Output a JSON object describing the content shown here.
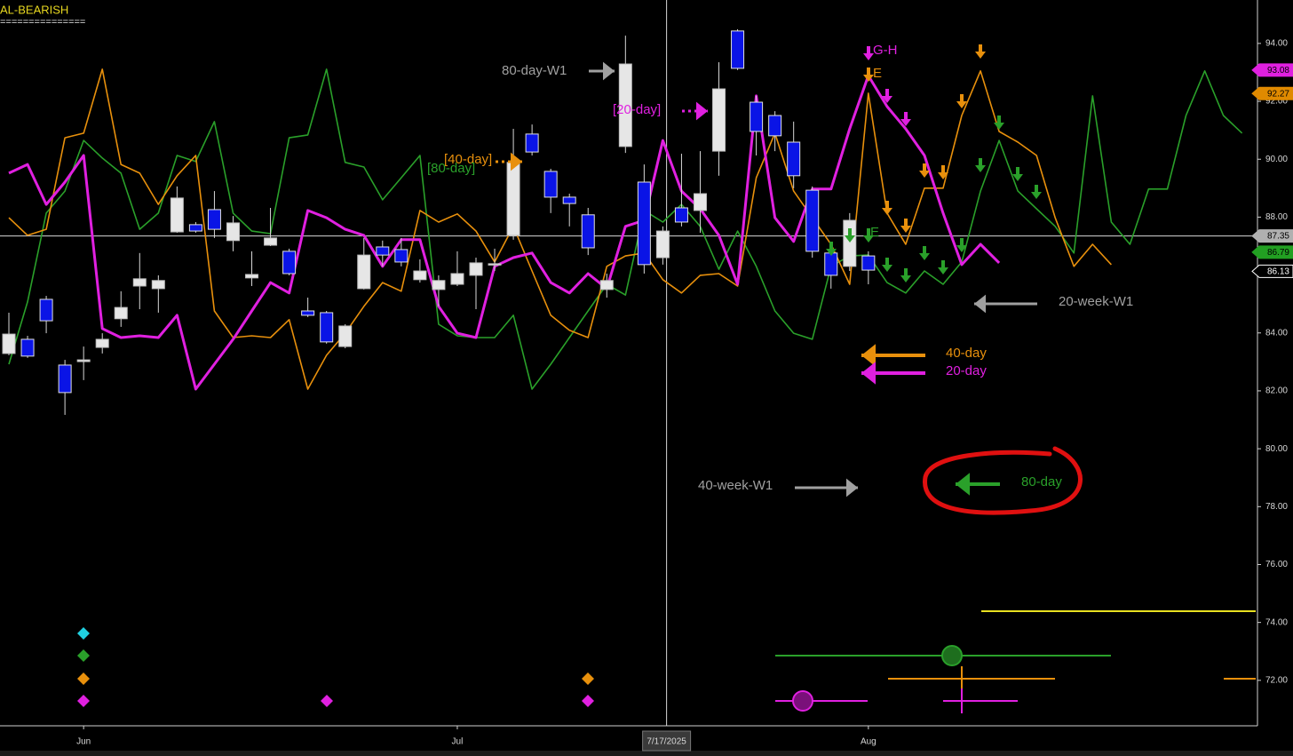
{
  "chart_data": {
    "type": "candlestick",
    "headline": "AL-BEARISH",
    "rule_text": "===============",
    "categories": [
      null,
      null,
      null,
      null,
      "Jun",
      null,
      null,
      null,
      null,
      null,
      null,
      null,
      null,
      null,
      null,
      null,
      null,
      null,
      null,
      null,
      null,
      null,
      null,
      null,
      "Jul",
      null,
      null,
      null,
      null,
      null,
      null,
      null,
      null,
      null,
      null,
      null,
      null,
      null,
      null,
      null,
      null,
      null,
      null,
      null,
      null,
      null,
      "Aug",
      null,
      null,
      null,
      null,
      null,
      null,
      null,
      null,
      null,
      null,
      null,
      null,
      null,
      null,
      null,
      null,
      null,
      null,
      null,
      null
    ],
    "open": [
      83.29,
      83.78,
      85.16,
      82.89,
      83.01,
      83.5,
      84.49,
      85.62,
      85.53,
      87.49,
      87.74,
      88.26,
      87.19,
      85.9,
      87.03,
      86.82,
      84.76,
      84.7,
      83.53,
      85.53,
      86.97,
      86.88,
      85.84,
      85.5,
      85.68,
      85.99,
      86.36,
      87.37,
      90.87,
      89.58,
      88.69,
      88.08,
      85.5,
      90.44,
      89.21,
      86.6,
      88.32,
      88.23,
      90.28,
      94.43,
      91.97,
      91.51,
      90.59,
      88.93,
      86.76,
      86.3,
      86.66,
      null,
      null,
      null,
      null,
      null,
      null,
      null,
      null,
      null,
      null,
      null,
      null,
      null,
      null,
      null,
      null,
      null,
      null,
      null,
      null
    ],
    "high": [
      84.7,
      83.9,
      85.28,
      83.07,
      83.53,
      83.99,
      85.44,
      86.76,
      85.99,
      89.06,
      87.83,
      88.9,
      88.04,
      86.82,
      88.32,
      86.91,
      85.22,
      84.76,
      84.3,
      87.28,
      87.19,
      87.28,
      86.54,
      85.99,
      86.82,
      86.6,
      86.91,
      91.05,
      91.2,
      89.67,
      88.81,
      88.32,
      86.05,
      94.27,
      89.82,
      87.68,
      90.19,
      90.28,
      93.35,
      94.49,
      92.19,
      91.66,
      91.3,
      89.06,
      86.91,
      88.14,
      86.82,
      null,
      null,
      null,
      null,
      null,
      null,
      null,
      null,
      null,
      null,
      null,
      null,
      null,
      null,
      null,
      null,
      null,
      null,
      null,
      null
    ],
    "low": [
      83.23,
      83.14,
      83.99,
      81.17,
      82.37,
      83.29,
      84.21,
      84.82,
      84.7,
      87.46,
      87.46,
      87.28,
      86.82,
      85.62,
      87.0,
      85.99,
      84.55,
      83.63,
      83.47,
      85.5,
      86.3,
      86.3,
      85.74,
      84.92,
      85.62,
      84.82,
      86.14,
      87.22,
      90.13,
      88.14,
      87.68,
      86.69,
      85.22,
      90.22,
      86.05,
      86.36,
      87.68,
      87.46,
      89.43,
      93.08,
      90.13,
      90.28,
      89.0,
      86.6,
      85.53,
      86.14,
      85.68,
      null,
      null,
      null,
      null,
      null,
      null,
      null,
      null,
      null,
      null,
      null,
      null,
      null,
      null,
      null,
      null,
      null,
      null,
      null,
      null
    ],
    "close": [
      83.96,
      83.2,
      84.42,
      81.94,
      83.07,
      83.78,
      84.88,
      85.87,
      85.81,
      88.66,
      87.52,
      87.58,
      87.8,
      86.02,
      87.28,
      86.05,
      84.61,
      83.69,
      84.24,
      86.69,
      86.69,
      86.45,
      86.14,
      85.81,
      86.05,
      86.42,
      86.39,
      89.89,
      90.25,
      88.69,
      88.47,
      86.94,
      85.81,
      93.29,
      86.36,
      87.52,
      87.83,
      88.81,
      92.43,
      93.14,
      90.96,
      90.81,
      89.43,
      86.82,
      85.99,
      87.89,
      86.17,
      null,
      null,
      null,
      null,
      null,
      null,
      null,
      null,
      null,
      null,
      null,
      null,
      null,
      null,
      null,
      null,
      null,
      null,
      null,
      null
    ],
    "up_color": "#e6e6e6",
    "down_color": "#0a14e6",
    "lines": [
      {
        "color": "#2aa02a",
        "values": [
          82.92,
          85.07,
          88.14,
          88.9,
          90.65,
          90.04,
          89.52,
          87.58,
          88.14,
          90.13,
          89.92,
          91.3,
          88.14,
          87.52,
          87.43,
          90.74,
          90.84,
          93.11,
          89.89,
          89.73,
          88.6,
          89.36,
          90.13,
          84.3,
          83.9,
          83.84,
          83.84,
          84.61,
          82.06,
          82.92,
          83.84,
          84.76,
          85.68,
          85.31,
          88.23,
          87.83,
          88.44,
          87.68,
          86.2,
          87.52,
          86.3,
          84.76,
          83.99,
          83.78,
          86.3,
          86.66,
          86.69,
          85.74,
          85.38,
          86.14,
          85.68,
          86.45,
          88.9,
          90.65,
          88.9,
          88.29,
          87.68,
          86.76,
          92.19,
          87.83,
          87.06,
          88.97,
          88.97,
          91.51,
          93.05,
          91.51,
          90.9
        ]
      },
      {
        "color": "#e8900c",
        "values": [
          87.98,
          87.37,
          87.58,
          90.74,
          90.9,
          93.11,
          89.82,
          89.52,
          88.44,
          89.43,
          90.13,
          84.76,
          83.84,
          83.9,
          83.84,
          84.46,
          82.06,
          83.23,
          83.99,
          84.92,
          85.74,
          85.44,
          88.23,
          87.83,
          88.11,
          87.52,
          86.45,
          87.68,
          86.14,
          84.61,
          84.09,
          83.84,
          86.3,
          86.66,
          86.76,
          85.84,
          85.38,
          85.99,
          86.05,
          85.62,
          89.36,
          90.9,
          88.9,
          87.98,
          87.06,
          85.68,
          92.28,
          88.14,
          87.06,
          89.0,
          89.0,
          91.51,
          93.05,
          90.96,
          90.59,
          90.13,
          87.98,
          86.3,
          87.06,
          86.36,
          null,
          null,
          null,
          null,
          null,
          null,
          null
        ]
      },
      {
        "color": "#e020e0",
        "values": [
          89.52,
          89.82,
          88.44,
          89.21,
          90.13,
          84.15,
          83.84,
          83.9,
          83.84,
          84.61,
          82.06,
          82.92,
          83.78,
          84.76,
          85.74,
          85.38,
          88.23,
          87.98,
          87.58,
          87.37,
          86.3,
          87.22,
          87.22,
          84.92,
          83.99,
          83.84,
          86.3,
          86.6,
          86.76,
          85.74,
          85.38,
          86.05,
          85.53,
          87.68,
          87.89,
          90.65,
          88.9,
          88.29,
          87.37,
          85.68,
          92.19,
          87.98,
          87.16,
          88.97,
          88.97,
          91.05,
          92.89,
          91.82,
          91.05,
          90.13,
          88.14,
          86.36,
          87.06,
          86.42,
          null,
          null,
          null,
          null,
          null,
          null,
          null,
          null,
          null,
          null,
          null,
          null,
          null
        ]
      }
    ],
    "ylim": [
      70.43,
      95.5
    ],
    "yticks": [
      {
        "value": 72,
        "label": "72.00"
      },
      {
        "value": 74,
        "label": "74.00"
      },
      {
        "value": 76,
        "label": "76.00"
      },
      {
        "value": 78,
        "label": "78.00"
      },
      {
        "value": 80,
        "label": "80.00"
      },
      {
        "value": 82,
        "label": "82.00"
      },
      {
        "value": 84,
        "label": "84.00"
      },
      {
        "value": 86,
        "label": "86.00"
      },
      {
        "value": 88,
        "label": "88.00"
      },
      {
        "value": 90,
        "label": "90.00"
      },
      {
        "value": 92,
        "label": "92.00"
      },
      {
        "value": 94,
        "label": "94.00"
      }
    ],
    "crosshair": {
      "x": 35.2,
      "label": "7/17/2025",
      "price": 87.35
    },
    "price_tags": [
      {
        "value": 93.08,
        "color": "#e020e0"
      },
      {
        "value": 92.27,
        "color": "#e08a00"
      },
      {
        "value": 86.79,
        "color": "#22a022"
      },
      {
        "value": 86.13,
        "color": "#000000"
      }
    ],
    "annotations": [
      {
        "text": "80-day-W1",
        "color": "#a0a0a0"
      },
      {
        "text": "[20-day]",
        "color": "#e020e0"
      },
      {
        "text": "[40-day]",
        "color": "#e8900c"
      },
      {
        "text": "[80-day]",
        "color": "#2aa02a"
      },
      {
        "text": "G-H",
        "color": "#e020e0"
      },
      {
        "text": "E",
        "color": "#e8900c"
      },
      {
        "text": "E",
        "color": "#2aa02a"
      },
      {
        "text": "20-week-W1",
        "color": "#a0a0a0"
      },
      {
        "text": "40-day",
        "color": "#e8900c"
      },
      {
        "text": "20-day",
        "color": "#e020e0"
      },
      {
        "text": "40-week-W1",
        "color": "#a0a0a0"
      },
      {
        "text": "80-day",
        "color": "#2aa02a"
      }
    ]
  }
}
